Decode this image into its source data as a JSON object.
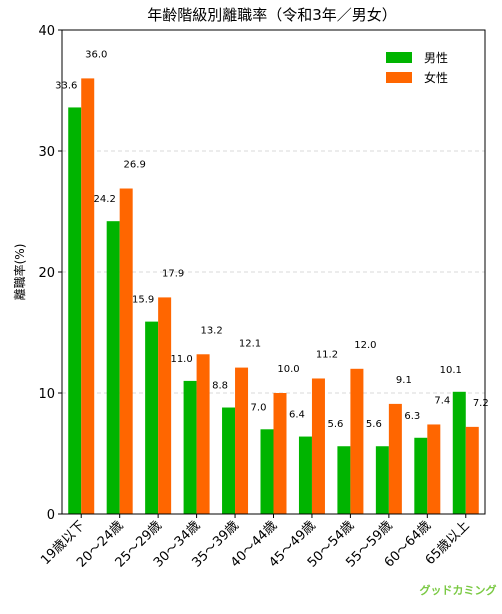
{
  "chart_data": {
    "type": "bar",
    "title": "年齢階級別離職率（令和3年／男女）",
    "xlabel": "",
    "ylabel": "離職率(%)",
    "ylim": [
      0,
      40
    ],
    "yticks": [
      0,
      10,
      20,
      30,
      40
    ],
    "grid": true,
    "legend_position": "top-right",
    "categories": [
      "19歳以下",
      "20～24歳",
      "25～29歳",
      "30～34歳",
      "35～39歳",
      "40～44歳",
      "45～49歳",
      "50～54歳",
      "55～59歳",
      "60～64歳",
      "65歳以上"
    ],
    "series": [
      {
        "name": "男性",
        "color": "#00b400",
        "values": [
          33.6,
          24.2,
          15.9,
          11.0,
          8.8,
          7.0,
          6.4,
          5.6,
          5.6,
          6.3,
          10.1
        ]
      },
      {
        "name": "女性",
        "color": "#ff6600",
        "values": [
          36.0,
          26.9,
          17.9,
          13.2,
          12.1,
          10.0,
          11.2,
          12.0,
          9.1,
          7.4,
          7.2
        ]
      }
    ]
  },
  "watermark": {
    "text": "グッドカミング",
    "color": "#7ac943"
  }
}
